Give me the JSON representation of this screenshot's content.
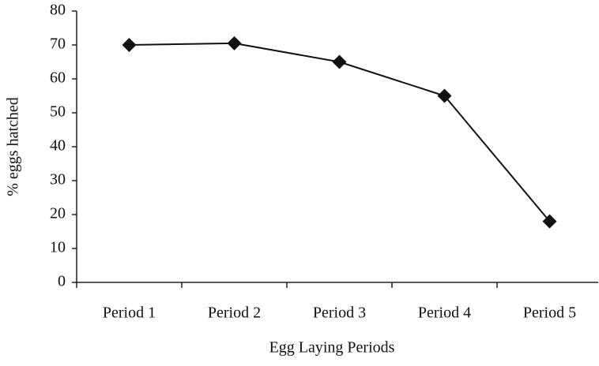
{
  "chart_data": {
    "type": "line",
    "categories": [
      "Period 1",
      "Period 2",
      "Period 3",
      "Period 4",
      "Period 5"
    ],
    "series": [
      {
        "name": "% eggs hatched",
        "color": "#111111",
        "values": [
          70,
          70.5,
          65,
          55,
          18
        ]
      }
    ],
    "ylim": [
      0,
      80
    ],
    "yticks": [
      0,
      10,
      20,
      30,
      40,
      50,
      60,
      70,
      80
    ],
    "xlabel": "Egg Laying Periods",
    "ylabel": "% eggs hatched",
    "grid": false
  }
}
